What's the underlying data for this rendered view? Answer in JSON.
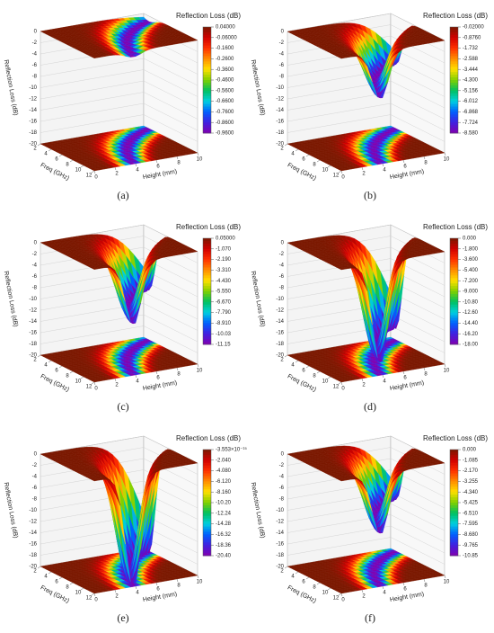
{
  "chart_data": [
    {
      "type": "surface3d",
      "panel": "(a)",
      "zlabel": "Reflection Loss (dB)",
      "xlabel": "Freq (GHz)",
      "ylabel": "Height (mm)",
      "zlim": [
        -20,
        0
      ],
      "zticks": [
        0,
        -2,
        -4,
        -6,
        -8,
        -10,
        -12,
        -14,
        -16,
        -18,
        -20
      ],
      "xlim": [
        2,
        12
      ],
      "xticks": [
        2,
        4,
        6,
        8,
        10,
        12
      ],
      "ylim": [
        0,
        10
      ],
      "yticks": [
        0,
        2,
        4,
        6,
        8,
        10
      ],
      "colors": [
        "#7a1800",
        "#d00000",
        "#ff3000",
        "#ff8c00",
        "#ffe000",
        "#80d000",
        "#00c060",
        "#00d0e0",
        "#0060ff",
        "#4020e0",
        "#8000b0"
      ],
      "colorbar": {
        "title": "Reflection Loss (dB)",
        "clim": [
          -0.96,
          0.04
        ],
        "ticks": [
          {
            "value": 0.04,
            "label": "0.04000"
          },
          {
            "value": -0.06,
            "label": "-0.06000"
          },
          {
            "value": -0.16,
            "label": "-0.1600"
          },
          {
            "value": -0.26,
            "label": "-0.2600"
          },
          {
            "value": -0.36,
            "label": "-0.3600"
          },
          {
            "value": -0.46,
            "label": "-0.4600"
          },
          {
            "value": -0.56,
            "label": "-0.5600"
          },
          {
            "value": -0.66,
            "label": "-0.6600"
          },
          {
            "value": -0.76,
            "label": "-0.7600"
          },
          {
            "value": -0.86,
            "label": "-0.8600"
          },
          {
            "value": -0.96,
            "label": "-0.9600"
          }
        ]
      }
    },
    {
      "type": "surface3d",
      "panel": "(b)",
      "zlabel": "Reflection Loss (dB)",
      "xlabel": "Freq (GHz)",
      "ylabel": "Height (mm)",
      "zlim": [
        -20,
        0
      ],
      "zticks": [
        0,
        -2,
        -4,
        -6,
        -8,
        -10,
        -12,
        -14,
        -16,
        -18,
        -20
      ],
      "xlim": [
        2,
        12
      ],
      "xticks": [
        2,
        4,
        6,
        8,
        10,
        12
      ],
      "ylim": [
        0,
        10
      ],
      "yticks": [
        0,
        2,
        4,
        6,
        8,
        10
      ],
      "colors": [
        "#7a1800",
        "#d00000",
        "#ff3000",
        "#ff8c00",
        "#ffe000",
        "#80d000",
        "#00c060",
        "#00d0e0",
        "#0060ff",
        "#4020e0",
        "#8000b0"
      ],
      "colorbar": {
        "title": "Reflection Loss (dB)",
        "clim": [
          -8.58,
          -0.02
        ],
        "ticks": [
          {
            "value": -0.02,
            "label": "-0.02000"
          },
          {
            "value": -0.876,
            "label": "-0.8760"
          },
          -1.732,
          -2.588,
          -3.444,
          {
            "value": -4.3,
            "label": "-4.300"
          },
          -5.156,
          -6.012,
          -6.868,
          -7.724,
          {
            "value": -8.58,
            "label": "-8.580"
          }
        ]
      }
    },
    {
      "type": "surface3d",
      "panel": "(c)",
      "zlabel": "Reflection Loss (dB)",
      "xlabel": "Freq (GHz)",
      "ylabel": "Height (mm)",
      "zlim": [
        -20,
        0
      ],
      "zticks": [
        0,
        -2,
        -4,
        -6,
        -8,
        -10,
        -12,
        -14,
        -16,
        -18,
        -20
      ],
      "xlim": [
        2,
        12
      ],
      "xticks": [
        2,
        4,
        6,
        8,
        10,
        12
      ],
      "ylim": [
        0,
        10
      ],
      "yticks": [
        0,
        2,
        4,
        6,
        8,
        10
      ],
      "colors": [
        "#7a1800",
        "#d00000",
        "#ff3000",
        "#ff8c00",
        "#ffe000",
        "#80d000",
        "#00c060",
        "#00d0e0",
        "#0060ff",
        "#4020e0",
        "#8000b0"
      ],
      "colorbar": {
        "title": "Reflection Loss (dB)",
        "clim": [
          -11.15,
          0.05
        ],
        "ticks": [
          {
            "value": 0.05,
            "label": "0.05000"
          },
          {
            "value": -1.07,
            "label": "-1.070"
          },
          {
            "value": -2.19,
            "label": "-2.190"
          },
          {
            "value": -3.31,
            "label": "-3.310"
          },
          {
            "value": -4.43,
            "label": "-4.430"
          },
          {
            "value": -5.55,
            "label": "-5.550"
          },
          {
            "value": -6.67,
            "label": "-6.670"
          },
          {
            "value": -7.79,
            "label": "-7.790"
          },
          {
            "value": -8.91,
            "label": "-8.910"
          },
          -10.03,
          -11.15
        ]
      }
    },
    {
      "type": "surface3d",
      "panel": "(d)",
      "zlabel": "Reflection Loss (dB)",
      "xlabel": "Freq (GHz)",
      "ylabel": "Height (mm)",
      "zlim": [
        -20,
        0
      ],
      "zticks": [
        0,
        -2,
        -4,
        -6,
        -8,
        -10,
        -12,
        -14,
        -16,
        -18,
        -20
      ],
      "xlim": [
        2,
        12
      ],
      "xticks": [
        2,
        4,
        6,
        8,
        10,
        12
      ],
      "ylim": [
        0,
        10
      ],
      "yticks": [
        0,
        2,
        4,
        6,
        8,
        10
      ],
      "colors": [
        "#7a1800",
        "#d00000",
        "#ff3000",
        "#ff8c00",
        "#ffe000",
        "#80d000",
        "#00c060",
        "#00d0e0",
        "#0060ff",
        "#4020e0",
        "#8000b0"
      ],
      "colorbar": {
        "title": "Reflection Loss (dB)",
        "clim": [
          -18,
          0
        ],
        "ticks": [
          {
            "value": 0,
            "label": "0.000"
          },
          {
            "value": -1.8,
            "label": "-1.800"
          },
          {
            "value": -3.6,
            "label": "-3.600"
          },
          {
            "value": -5.4,
            "label": "-5.400"
          },
          {
            "value": -7.2,
            "label": "-7.200"
          },
          {
            "value": -9,
            "label": "-9.000"
          },
          {
            "value": -10.8,
            "label": "-10.80"
          },
          {
            "value": -12.6,
            "label": "-12.60"
          },
          {
            "value": -14.4,
            "label": "-14.40"
          },
          {
            "value": -16.2,
            "label": "-16.20"
          },
          {
            "value": -18,
            "label": "-18.00"
          }
        ]
      }
    },
    {
      "type": "surface3d",
      "panel": "(e)",
      "zlabel": "Reflection Loss (dB)",
      "xlabel": "Freq (GHz)",
      "ylabel": "Height (mm)",
      "zlim": [
        -20,
        0
      ],
      "zticks": [
        0,
        -2,
        -4,
        -6,
        -8,
        -10,
        -12,
        -14,
        -16,
        -18,
        -20
      ],
      "xlim": [
        2,
        12
      ],
      "xticks": [
        2,
        4,
        6,
        8,
        10,
        12
      ],
      "ylim": [
        0,
        10
      ],
      "yticks": [
        0,
        2,
        4,
        6,
        8,
        10
      ],
      "colors": [
        "#7a1800",
        "#d00000",
        "#ff3000",
        "#ff8c00",
        "#ffe000",
        "#80d000",
        "#00c060",
        "#00d0e0",
        "#0060ff",
        "#4020e0",
        "#8000b0"
      ],
      "colorbar": {
        "title": "Reflection Loss (dB)",
        "clim": [
          -20.4,
          -3.553e-15
        ],
        "ticks": [
          {
            "value": -3.553e-15,
            "label": "-3.553×10⁻¹⁵"
          },
          {
            "value": -2.04,
            "label": "-2.040"
          },
          {
            "value": -4.08,
            "label": "-4.080"
          },
          {
            "value": -6.12,
            "label": "-6.120"
          },
          {
            "value": -8.16,
            "label": "-8.160"
          },
          {
            "value": -10.2,
            "label": "-10.20"
          },
          -12.24,
          -14.28,
          -16.32,
          -18.36,
          {
            "value": -20.4,
            "label": "-20.40"
          }
        ]
      }
    },
    {
      "type": "surface3d",
      "panel": "(f)",
      "zlabel": "Reflection Loss (dB)",
      "xlabel": "Freq (GHz)",
      "ylabel": "Height (mm)",
      "zlim": [
        -20,
        0
      ],
      "zticks": [
        0,
        -2,
        -4,
        -6,
        -8,
        -10,
        -12,
        -14,
        -16,
        -18,
        -20
      ],
      "xlim": [
        2,
        12
      ],
      "xticks": [
        2,
        4,
        6,
        8,
        10,
        12
      ],
      "ylim": [
        0,
        10
      ],
      "yticks": [
        0,
        2,
        4,
        6,
        8,
        10
      ],
      "colors": [
        "#7a1800",
        "#d00000",
        "#ff3000",
        "#ff8c00",
        "#ffe000",
        "#80d000",
        "#00c060",
        "#00d0e0",
        "#0060ff",
        "#4020e0",
        "#8000b0"
      ],
      "colorbar": {
        "title": "Reflection Loss (dB)",
        "clim": [
          -10.85,
          0
        ],
        "ticks": [
          {
            "value": 0,
            "label": "0.000"
          },
          -1.085,
          {
            "value": -2.17,
            "label": "-2.170"
          },
          -3.255,
          {
            "value": -4.34,
            "label": "-4.340"
          },
          -5.425,
          {
            "value": -6.51,
            "label": "-6.510"
          },
          -7.595,
          {
            "value": -8.68,
            "label": "-8.680"
          },
          -9.765,
          -10.85
        ]
      }
    }
  ]
}
